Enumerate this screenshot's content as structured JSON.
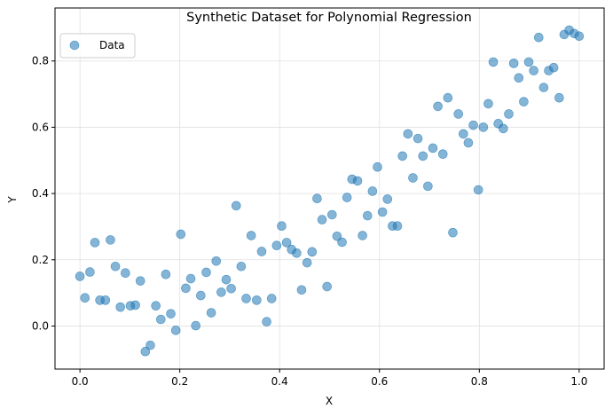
{
  "chart_data": {
    "type": "scatter",
    "title": "Synthetic Dataset for Polynomial Regression",
    "xlabel": "X",
    "ylabel": "Y",
    "xlim": [
      -0.05,
      1.05
    ],
    "ylim": [
      -0.13,
      0.96
    ],
    "xticks": [
      0.0,
      0.2,
      0.4,
      0.6,
      0.8,
      1.0
    ],
    "xtick_labels": [
      "0.0",
      "0.2",
      "0.4",
      "0.6",
      "0.8",
      "1.0"
    ],
    "yticks": [
      0.0,
      0.2,
      0.4,
      0.6,
      0.8
    ],
    "ytick_labels": [
      "0.0",
      "0.2",
      "0.4",
      "0.6",
      "0.8"
    ],
    "grid": true,
    "legend_position": "top-left",
    "colors": {
      "marker_fill": "#1f77b4",
      "marker_opacity": 0.55,
      "grid": "#e0e0e0",
      "axes": "#000000"
    },
    "series": [
      {
        "name": "Data",
        "points": [
          [
            0.0,
            0.15
          ],
          [
            0.01,
            0.085
          ],
          [
            0.02,
            0.163
          ],
          [
            0.03,
            0.252
          ],
          [
            0.04,
            0.078
          ],
          [
            0.051,
            0.078
          ],
          [
            0.061,
            0.26
          ],
          [
            0.071,
            0.18
          ],
          [
            0.081,
            0.057
          ],
          [
            0.091,
            0.16
          ],
          [
            0.101,
            0.061
          ],
          [
            0.111,
            0.063
          ],
          [
            0.121,
            0.136
          ],
          [
            0.131,
            -0.077
          ],
          [
            0.141,
            -0.058
          ],
          [
            0.152,
            0.061
          ],
          [
            0.162,
            0.02
          ],
          [
            0.172,
            0.156
          ],
          [
            0.182,
            0.037
          ],
          [
            0.192,
            -0.013
          ],
          [
            0.202,
            0.277
          ],
          [
            0.212,
            0.114
          ],
          [
            0.222,
            0.143
          ],
          [
            0.232,
            0.001
          ],
          [
            0.242,
            0.092
          ],
          [
            0.253,
            0.162
          ],
          [
            0.263,
            0.04
          ],
          [
            0.273,
            0.196
          ],
          [
            0.283,
            0.102
          ],
          [
            0.293,
            0.14
          ],
          [
            0.303,
            0.113
          ],
          [
            0.313,
            0.363
          ],
          [
            0.323,
            0.18
          ],
          [
            0.333,
            0.083
          ],
          [
            0.343,
            0.273
          ],
          [
            0.354,
            0.078
          ],
          [
            0.364,
            0.225
          ],
          [
            0.374,
            0.013
          ],
          [
            0.384,
            0.083
          ],
          [
            0.394,
            0.243
          ],
          [
            0.404,
            0.302
          ],
          [
            0.414,
            0.252
          ],
          [
            0.424,
            0.231
          ],
          [
            0.434,
            0.22
          ],
          [
            0.444,
            0.109
          ],
          [
            0.455,
            0.191
          ],
          [
            0.465,
            0.224
          ],
          [
            0.475,
            0.385
          ],
          [
            0.485,
            0.321
          ],
          [
            0.495,
            0.119
          ],
          [
            0.505,
            0.336
          ],
          [
            0.515,
            0.271
          ],
          [
            0.525,
            0.253
          ],
          [
            0.535,
            0.388
          ],
          [
            0.545,
            0.443
          ],
          [
            0.556,
            0.438
          ],
          [
            0.566,
            0.273
          ],
          [
            0.576,
            0.333
          ],
          [
            0.586,
            0.407
          ],
          [
            0.596,
            0.48
          ],
          [
            0.606,
            0.344
          ],
          [
            0.616,
            0.383
          ],
          [
            0.626,
            0.302
          ],
          [
            0.636,
            0.302
          ],
          [
            0.646,
            0.513
          ],
          [
            0.657,
            0.58
          ],
          [
            0.667,
            0.447
          ],
          [
            0.677,
            0.566
          ],
          [
            0.687,
            0.513
          ],
          [
            0.697,
            0.422
          ],
          [
            0.707,
            0.537
          ],
          [
            0.717,
            0.663
          ],
          [
            0.727,
            0.519
          ],
          [
            0.737,
            0.689
          ],
          [
            0.747,
            0.282
          ],
          [
            0.758,
            0.64
          ],
          [
            0.768,
            0.58
          ],
          [
            0.778,
            0.553
          ],
          [
            0.788,
            0.606
          ],
          [
            0.798,
            0.411
          ],
          [
            0.808,
            0.6
          ],
          [
            0.818,
            0.671
          ],
          [
            0.828,
            0.797
          ],
          [
            0.838,
            0.611
          ],
          [
            0.848,
            0.596
          ],
          [
            0.859,
            0.64
          ],
          [
            0.869,
            0.793
          ],
          [
            0.879,
            0.749
          ],
          [
            0.889,
            0.677
          ],
          [
            0.899,
            0.797
          ],
          [
            0.909,
            0.771
          ],
          [
            0.919,
            0.871
          ],
          [
            0.929,
            0.72
          ],
          [
            0.939,
            0.771
          ],
          [
            0.949,
            0.78
          ],
          [
            0.96,
            0.689
          ],
          [
            0.97,
            0.88
          ],
          [
            0.98,
            0.893
          ],
          [
            0.99,
            0.883
          ],
          [
            1.0,
            0.875
          ]
        ]
      }
    ]
  }
}
